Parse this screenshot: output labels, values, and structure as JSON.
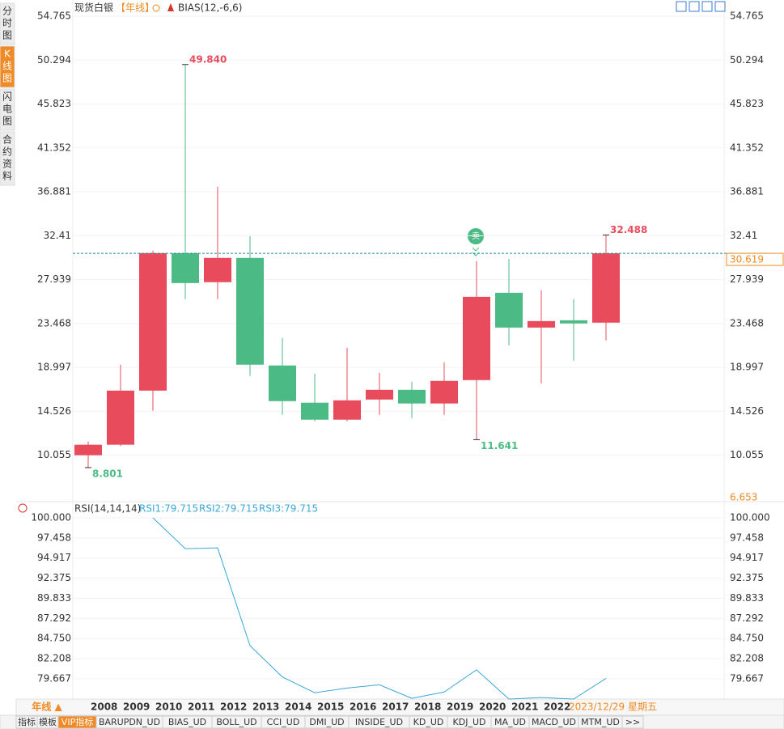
{
  "chart_data": [
    {
      "type": "candlestick",
      "title": "现货白银",
      "period": "【年线】",
      "indicator": "BIAS(12,-6,6)",
      "signal": "卖",
      "categories": [
        null,
        "2008",
        "2009",
        "2010",
        "2011",
        "2012",
        "2013",
        "2014",
        "2015",
        "2016",
        "2017",
        "2018",
        "2019",
        "2020",
        "2021",
        "2022",
        "2023/12/29 星期五"
      ],
      "open": [
        10.06,
        11.13,
        16.64,
        30.64,
        27.68,
        30.15,
        19.2,
        15.41,
        13.68,
        15.73,
        16.72,
        15.33,
        17.71,
        26.6,
        23.06,
        23.8,
        23.56
      ],
      "close": [
        11.13,
        16.64,
        30.64,
        27.59,
        30.15,
        19.28,
        15.57,
        13.68,
        15.65,
        16.72,
        15.33,
        17.63,
        26.19,
        23.06,
        23.72,
        23.48,
        30.619
      ],
      "high": [
        11.46,
        19.28,
        30.89,
        49.84,
        37.39,
        32.37,
        22.0,
        18.37,
        21.0,
        18.45,
        17.55,
        19.53,
        29.82,
        30.06,
        26.85,
        25.95,
        32.488
      ],
      "low": [
        8.801,
        11.0,
        14.58,
        25.95,
        25.95,
        18.13,
        14.17,
        13.51,
        13.51,
        14.17,
        13.84,
        14.17,
        11.641,
        21.25,
        17.38,
        19.69,
        21.75
      ],
      "high_labels": [
        null,
        null,
        null,
        "49.840",
        null,
        null,
        null,
        null,
        null,
        null,
        null,
        null,
        null,
        null,
        null,
        null,
        "32.488"
      ],
      "low_labels": [
        "8.801",
        null,
        null,
        null,
        null,
        null,
        null,
        null,
        null,
        null,
        null,
        null,
        "11.641",
        null,
        null,
        null,
        null
      ],
      "up_color": "#e84c5c",
      "down_color": "#4cba84",
      "ylim": [
        6.653,
        54.765
      ],
      "yticks": [
        10.055,
        14.526,
        18.997,
        23.468,
        27.939,
        32.41,
        {
          "value": 36.881,
          "label": "36.881"
        },
        41.352,
        45.823,
        50.294,
        54.765
      ],
      "grid": true
    },
    {
      "type": "line",
      "title": "RSI(14,14,14)",
      "legend": [
        "RSI1:79.715",
        "RSI2:79.715",
        "RSI3:79.715"
      ],
      "series": [
        {
          "color": "#3aa8d8",
          "values": [
            null,
            null,
            100.0,
            96.1,
            96.2,
            83.85,
            79.9,
            77.9,
            78.5,
            78.9,
            77.2,
            78.0,
            80.8,
            77.1,
            77.3,
            77.1,
            79.715
          ]
        }
      ],
      "ylim": [
        76.9,
        100
      ],
      "yticks": [
        79.667,
        82.208,
        {
          "value": 84.75,
          "label": "84.750"
        },
        87.292,
        89.833,
        92.375,
        94.917,
        97.458,
        {
          "value": 100,
          "label": "100.000"
        }
      ],
      "grid": true
    }
  ],
  "ui": {
    "side_tabs": [
      "分时图",
      "K线图",
      "闪电图",
      "合约资料"
    ],
    "period_button": "年线 ▲",
    "bottom_tabs": [
      "指标",
      "模板",
      "VIP指标",
      "BARUPDN_UD",
      "BIAS_UD",
      "BOLL_UD",
      "CCI_UD",
      "DMI_UD",
      "INSIDE_UD",
      "KD_UD",
      "KDJ_UD",
      "MA_UD",
      "MACD_UD",
      "MTM_UD",
      ">>"
    ]
  }
}
